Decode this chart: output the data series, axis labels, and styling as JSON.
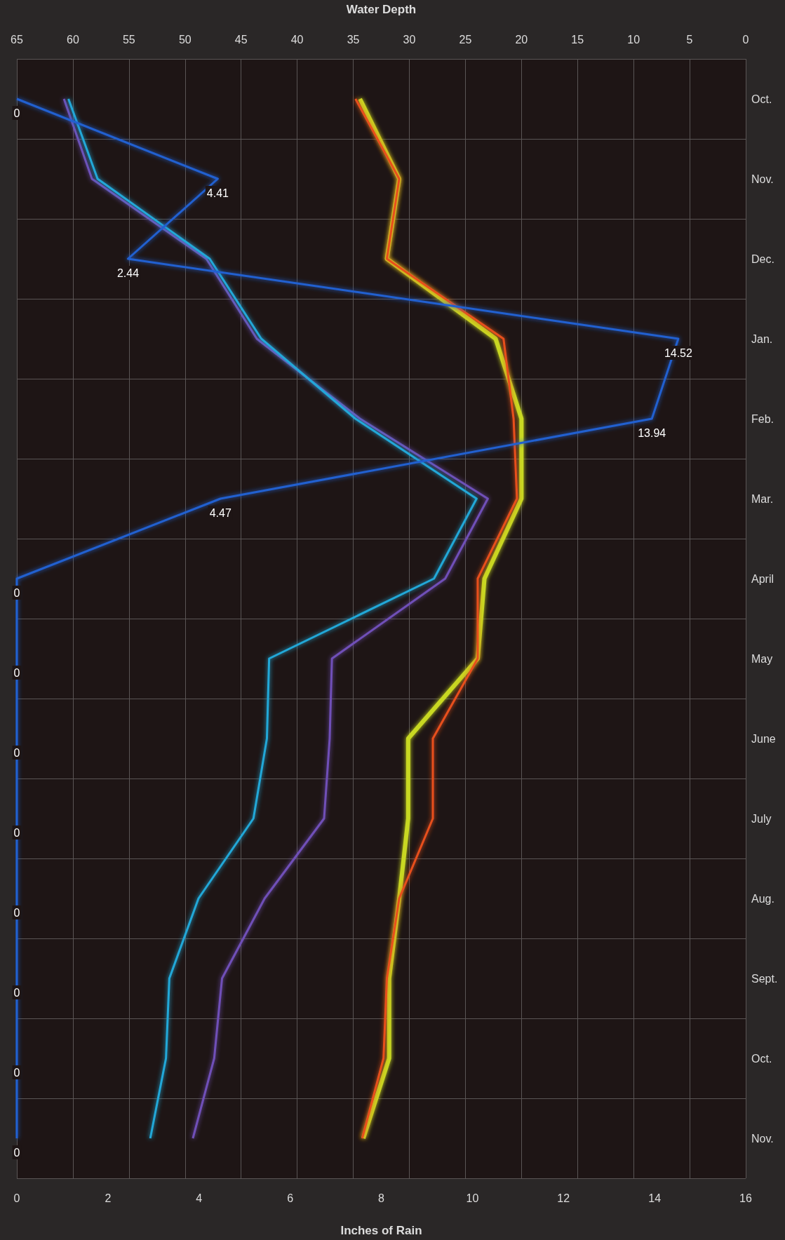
{
  "chart_data": {
    "type": "line",
    "orientation": "horizontal",
    "xlabel": "Inches of Rain",
    "x2label": "Water Depth",
    "categories": [
      "Oct.",
      "Nov.",
      "Dec.",
      "Jan.",
      "Feb.",
      "Mar.",
      "April",
      "May",
      "June",
      "July",
      "Aug.",
      "Sept.",
      "Oct.",
      "Nov."
    ],
    "series": [
      {
        "color": "#c8d820",
        "axis": "x2",
        "values": [
          34.4,
          30.9,
          32,
          22.3,
          20,
          20,
          23.3,
          23.9,
          30.1,
          30.1,
          30.9,
          31.8,
          31.8,
          34.1
        ]
      },
      {
        "color": "#e8501c",
        "axis": "x2",
        "values": [
          34.8,
          30.9,
          32,
          21.6,
          20.7,
          20.4,
          23.9,
          23.9,
          27.9,
          27.9,
          30.9,
          32,
          32.3,
          34.2
        ]
      },
      {
        "color": "#7050b8",
        "axis": "x2",
        "values": [
          60.8,
          58.3,
          48.1,
          43.6,
          34.4,
          23,
          26.8,
          36.9,
          37.1,
          37.6,
          42.9,
          46.7,
          47.4,
          49.3
        ]
      },
      {
        "color": "#22a8d8",
        "axis": "x2",
        "values": [
          60.4,
          57.8,
          47.8,
          43.2,
          34.8,
          24,
          27.8,
          42.5,
          42.7,
          43.9,
          48.8,
          51.4,
          51.7,
          53.1
        ]
      },
      {
        "color": "#2060d0",
        "values": [
          0,
          4.41,
          2.44,
          14.52,
          13.94,
          4.47,
          0,
          0,
          0,
          0,
          0,
          0,
          0,
          0
        ],
        "value_labels": [
          "0",
          "4.41",
          "2.44",
          "14.52",
          "13.94",
          "4.47",
          "0",
          "0",
          "0",
          "0",
          "0",
          "0",
          "0",
          "0"
        ]
      }
    ],
    "xlim": [
      0,
      16
    ],
    "xticks": [
      0,
      2,
      4,
      6,
      8,
      10,
      12,
      14,
      16
    ],
    "x2lim": [
      65,
      0
    ],
    "x2ticks": [
      0,
      5,
      10,
      15,
      20,
      25,
      30,
      35,
      40,
      45,
      50,
      55,
      60,
      65
    ],
    "grid": true,
    "marker": "none"
  }
}
